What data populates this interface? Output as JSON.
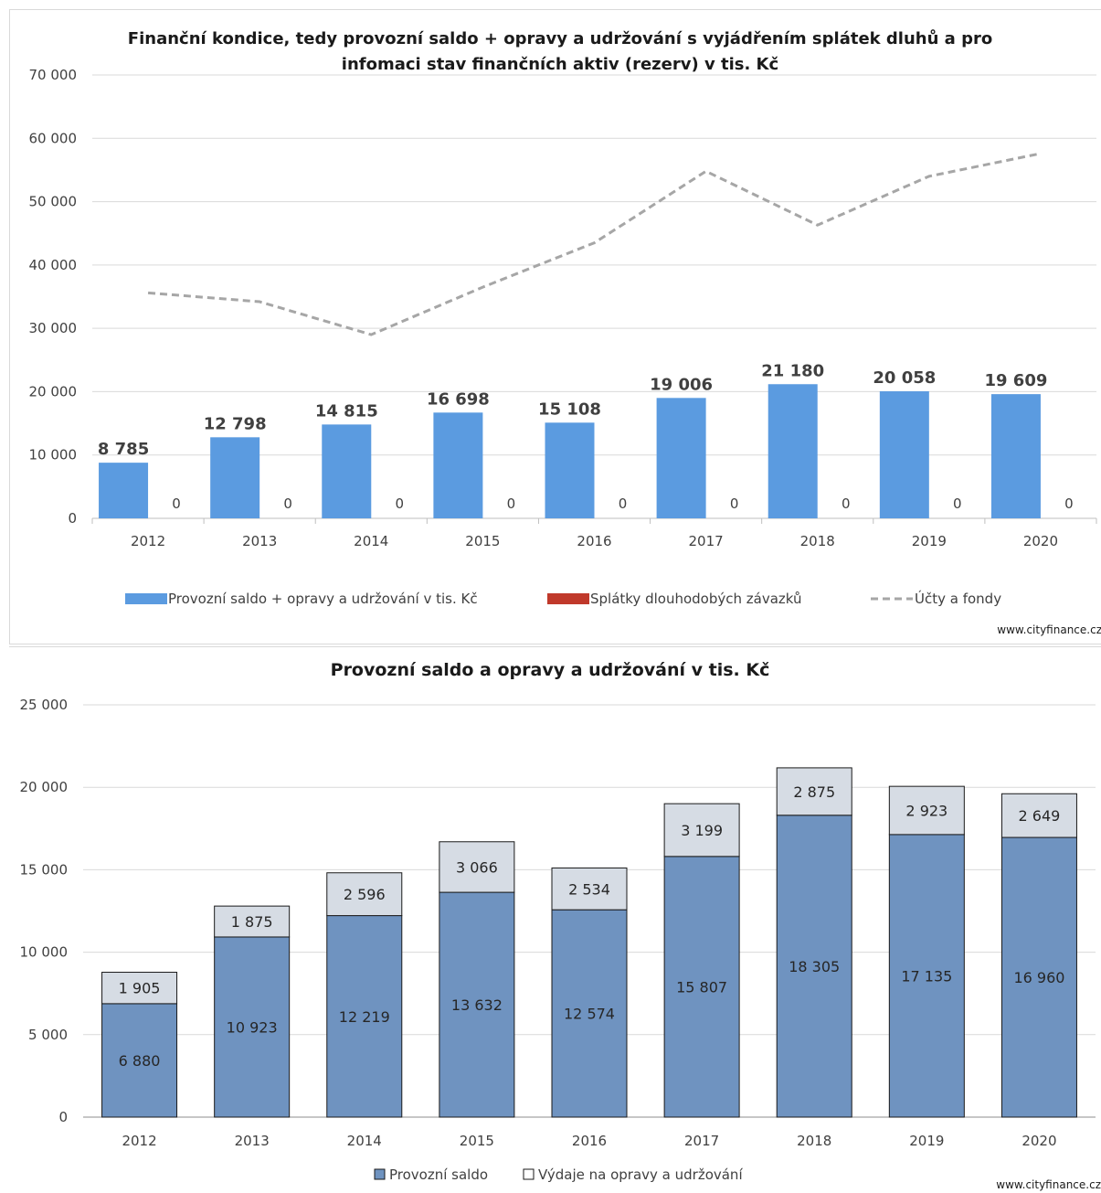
{
  "chart_data": [
    {
      "type": "bar",
      "title_lines": [
        "Finanční kondice, tedy provozní saldo + opravy a udržování s vyjádřením splátek dluhů a pro",
        "infomaci stav finančních aktiv (rezerv) v tis. Kč"
      ],
      "categories": [
        "2012",
        "2013",
        "2014",
        "2015",
        "2016",
        "2017",
        "2018",
        "2019",
        "2020"
      ],
      "y_ticks": [
        "0",
        "10 000",
        "20 000",
        "30 000",
        "40 000",
        "50 000",
        "60 000",
        "70 000"
      ],
      "ylim": [
        0,
        70000
      ],
      "grid": true,
      "legend_position": "bottom",
      "series": [
        {
          "name": "Provozní saldo + opravy a udržování v tis. Kč",
          "kind": "bar",
          "color": "#5b9be0",
          "values": [
            8785,
            12798,
            14815,
            16698,
            15108,
            19006,
            21180,
            20058,
            19609
          ],
          "labels": [
            "8 785",
            "12 798",
            "14 815",
            "16 698",
            "15 108",
            "19 006",
            "21 180",
            "20 058",
            "19 609"
          ]
        },
        {
          "name": "Splátky dlouhodobých závazků",
          "kind": "bar",
          "color": "#c0392b",
          "values": [
            0,
            0,
            0,
            0,
            0,
            0,
            0,
            0,
            0
          ],
          "labels": [
            "0",
            "0",
            "0",
            "0",
            "0",
            "0",
            "0",
            "0",
            "0"
          ]
        },
        {
          "name": "Účty a fondy",
          "kind": "line-dashed",
          "color": "#a6a6a6",
          "values": [
            35600,
            34200,
            29000,
            36500,
            43500,
            54800,
            46300,
            54000,
            57600
          ]
        }
      ],
      "watermark": "www.cityfinance.cz"
    },
    {
      "type": "bar",
      "stacked": true,
      "title": "Provozní saldo a opravy a udržování v tis. Kč",
      "categories": [
        "2012",
        "2013",
        "2014",
        "2015",
        "2016",
        "2017",
        "2018",
        "2019",
        "2020"
      ],
      "y_ticks": [
        "0",
        "5 000",
        "10 000",
        "15 000",
        "20 000",
        "25 000"
      ],
      "ylim": [
        0,
        25000
      ],
      "grid": true,
      "legend_position": "bottom",
      "series": [
        {
          "name": "Provozní saldo",
          "color": "#6f93c0",
          "values": [
            6880,
            10923,
            12219,
            13632,
            12574,
            15807,
            18305,
            17135,
            16960
          ],
          "labels": [
            "6 880",
            "10 923",
            "12 219",
            "13 632",
            "12 574",
            "15 807",
            "18 305",
            "17 135",
            "16 960"
          ]
        },
        {
          "name": "Výdaje na opravy a udržování",
          "color": "#d6dce4",
          "values": [
            1905,
            1875,
            2596,
            3066,
            2534,
            3199,
            2875,
            2923,
            2649
          ],
          "labels": [
            "1 905",
            "1 875",
            "2 596",
            "3 066",
            "2 534",
            "3 199",
            "2 875",
            "2 923",
            "2 649"
          ]
        }
      ],
      "watermark": "www.cityfinance.cz"
    }
  ]
}
